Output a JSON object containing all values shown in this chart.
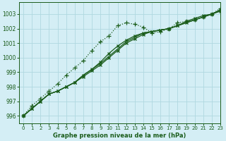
{
  "title": "Graphe pression niveau de la mer (hPa)",
  "xlim": [
    -0.5,
    23
  ],
  "ylim": [
    995.5,
    1003.8
  ],
  "yticks": [
    996,
    997,
    998,
    999,
    1000,
    1001,
    1002,
    1003
  ],
  "xticks": [
    0,
    1,
    2,
    3,
    4,
    5,
    6,
    7,
    8,
    9,
    10,
    11,
    12,
    13,
    14,
    15,
    16,
    17,
    18,
    19,
    20,
    21,
    22,
    23
  ],
  "bg_color": "#d4eef5",
  "grid_color": "#b0d8e0",
  "line_color": "#1a5c1a",
  "series": [
    {
      "y": [
        996.0,
        996.5,
        997.0,
        997.5,
        997.7,
        998.0,
        998.3,
        998.8,
        999.2,
        999.7,
        1000.3,
        1000.8,
        1001.2,
        1001.5,
        1001.7,
        1001.8,
        1001.9,
        1002.0,
        1002.2,
        1002.4,
        1002.6,
        1002.8,
        1003.0,
        1003.3
      ],
      "linestyle": "-",
      "marker": "x",
      "markersize": 3.5
    },
    {
      "y": [
        996.0,
        996.5,
        997.0,
        997.5,
        997.7,
        998.0,
        998.3,
        998.7,
        999.1,
        999.5,
        1000.0,
        1000.5,
        1001.0,
        1001.3,
        1001.6,
        1001.8,
        1001.9,
        1002.0,
        1002.2,
        1002.5,
        1002.7,
        1002.9,
        1003.0,
        1003.2
      ],
      "linestyle": "-",
      "marker": "x",
      "markersize": 3.5
    },
    {
      "y": [
        996.0,
        996.5,
        997.0,
        997.5,
        997.7,
        998.0,
        998.3,
        998.8,
        999.2,
        999.6,
        1000.1,
        1000.6,
        1001.1,
        1001.4,
        1001.7,
        1001.8,
        1001.9,
        1002.0,
        1002.2,
        1002.4,
        1002.6,
        1002.8,
        1003.0,
        1003.25
      ],
      "linestyle": "-",
      "marker": null,
      "markersize": 0
    },
    {
      "y": [
        996.0,
        996.7,
        997.2,
        997.7,
        998.2,
        998.8,
        999.3,
        999.8,
        1000.5,
        1001.1,
        1001.5,
        1002.2,
        1002.4,
        1002.3,
        1002.1,
        1001.7,
        1001.8,
        1002.0,
        1002.4,
        1002.5,
        1002.6,
        1002.8,
        1003.0,
        1003.4
      ],
      "linestyle": ":",
      "marker": "+",
      "markersize": 4.5
    }
  ]
}
